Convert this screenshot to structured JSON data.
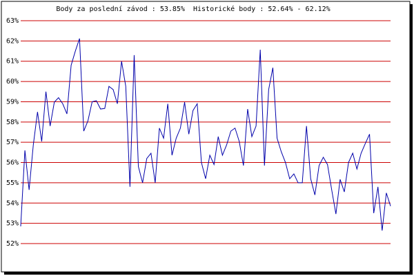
{
  "chart_data": {
    "type": "line",
    "title": "Body za poslední závod : 53.85%  Historické body : 52.64% - 62.12%",
    "ylim": [
      52,
      63
    ],
    "yticks": [
      {
        "value": 52,
        "label": "52%"
      },
      {
        "value": 53,
        "label": "53%"
      },
      {
        "value": 54,
        "label": "54%"
      },
      {
        "value": 55,
        "label": "55%"
      },
      {
        "value": 56,
        "label": "56%"
      },
      {
        "value": 57,
        "label": "57%"
      },
      {
        "value": 58,
        "label": "58%"
      },
      {
        "value": 59,
        "label": "59%"
      },
      {
        "value": 60,
        "label": "60%"
      },
      {
        "value": 61,
        "label": "61%"
      },
      {
        "value": 62,
        "label": "62%"
      },
      {
        "value": 63,
        "label": "63%"
      }
    ],
    "grid": true,
    "grid_color": "#cc0000",
    "color": "#0000aa",
    "values": [
      52.85,
      56.6,
      54.65,
      56.87,
      58.5,
      57.04,
      59.5,
      57.8,
      58.98,
      59.2,
      58.9,
      58.4,
      60.8,
      61.5,
      62.12,
      57.55,
      58.06,
      59.0,
      59.05,
      58.64,
      58.67,
      59.76,
      59.6,
      58.9,
      61.0,
      59.76,
      54.8,
      61.3,
      55.8,
      55.0,
      56.2,
      56.46,
      55.0,
      57.7,
      57.2,
      58.9,
      56.36,
      57.2,
      57.7,
      58.98,
      57.4,
      58.57,
      58.9,
      56.0,
      55.2,
      56.36,
      55.9,
      57.28,
      56.36,
      56.87,
      57.55,
      57.7,
      57.04,
      55.85,
      58.64,
      57.28,
      57.8,
      61.57,
      55.85,
      59.6,
      60.68,
      57.2,
      56.53,
      56.0,
      55.2,
      55.44,
      55.0,
      55.0,
      57.8,
      55.2,
      54.4,
      55.85,
      56.26,
      55.9,
      54.65,
      53.46,
      55.17,
      54.55,
      56.0,
      56.46,
      55.68,
      56.46,
      56.94,
      57.4,
      53.5,
      54.8,
      52.64,
      54.5,
      53.85
    ]
  }
}
